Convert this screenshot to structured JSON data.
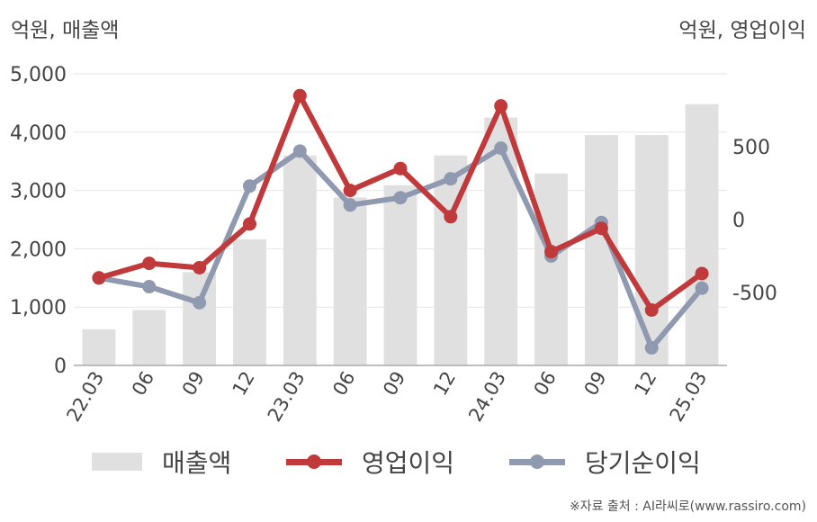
{
  "units": {
    "left": "억원, 매출액",
    "right": "억원, 영업이익"
  },
  "colors": {
    "bar": "#e0e0e0",
    "operating": "#c0393b",
    "net": "#8f9ab0",
    "grid": "#e6e6e6",
    "axis": "#aaaaaa"
  },
  "chart_data": {
    "type": "bar+line",
    "categories": [
      "22.03",
      "06",
      "09",
      "12",
      "23.03",
      "06",
      "09",
      "12",
      "24.03",
      "06",
      "09",
      "12",
      "25.03"
    ],
    "left_axis": {
      "label": "억원, 매출액",
      "ylim": [
        0,
        5000
      ],
      "ticks": [
        "0",
        "1,000",
        "2,000",
        "3,000",
        "4,000",
        "5,000"
      ]
    },
    "right_axis": {
      "label": "억원, 영업이익",
      "ylim": [
        -1000,
        1000
      ],
      "ticks": [
        "-500",
        "0",
        "500"
      ]
    },
    "series": [
      {
        "name": "매출액",
        "type": "bar",
        "axis": "left",
        "values": [
          620,
          950,
          1600,
          2160,
          3600,
          2880,
          3090,
          3600,
          4250,
          3290,
          3950,
          3950,
          4480
        ]
      },
      {
        "name": "영업이익",
        "type": "line",
        "axis": "right",
        "values": [
          -400,
          -300,
          -330,
          -30,
          850,
          200,
          350,
          20,
          780,
          -220,
          -60,
          -620,
          -370
        ]
      },
      {
        "name": "당기순이익",
        "type": "line",
        "axis": "right",
        "values": [
          -400,
          -460,
          -570,
          230,
          470,
          100,
          150,
          280,
          490,
          -250,
          -20,
          -880,
          -470
        ]
      }
    ],
    "grid": true,
    "legend_position": "bottom"
  },
  "legend": {
    "sales": "매출액",
    "operating": "영업이익",
    "net": "당기순이익"
  },
  "source": "※자료 출처 : AI라씨로(www.rassiro.com)"
}
